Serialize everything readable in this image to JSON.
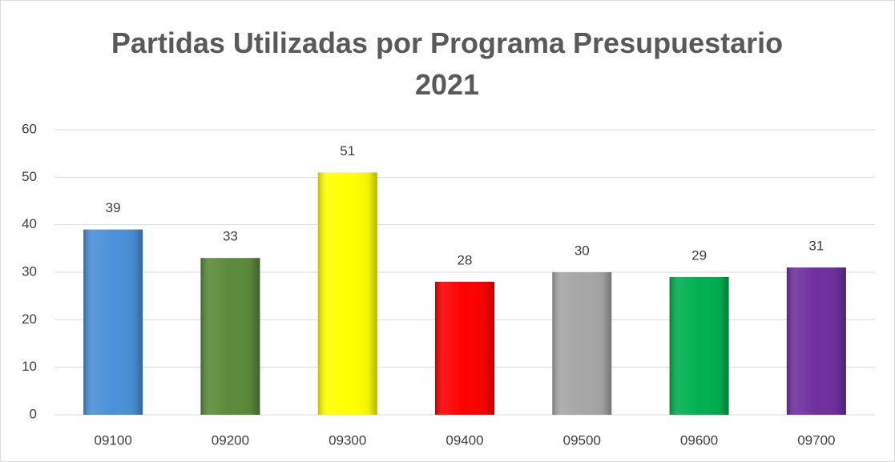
{
  "chart_data": {
    "type": "bar",
    "title": "Partidas Utilizadas por Programa Presupuestario 2021",
    "categories": [
      "09100",
      "09200",
      "09300",
      "09400",
      "09500",
      "09600",
      "09700"
    ],
    "values": [
      39,
      33,
      51,
      28,
      30,
      29,
      31
    ],
    "colors": [
      "#4a90d9",
      "#5b8a3a",
      "#ffff00",
      "#ff0000",
      "#a6a6a6",
      "#00b050",
      "#7030a0"
    ],
    "ylim": [
      0,
      60
    ],
    "yticks": [
      0,
      10,
      20,
      30,
      40,
      50,
      60
    ],
    "grid": true
  }
}
